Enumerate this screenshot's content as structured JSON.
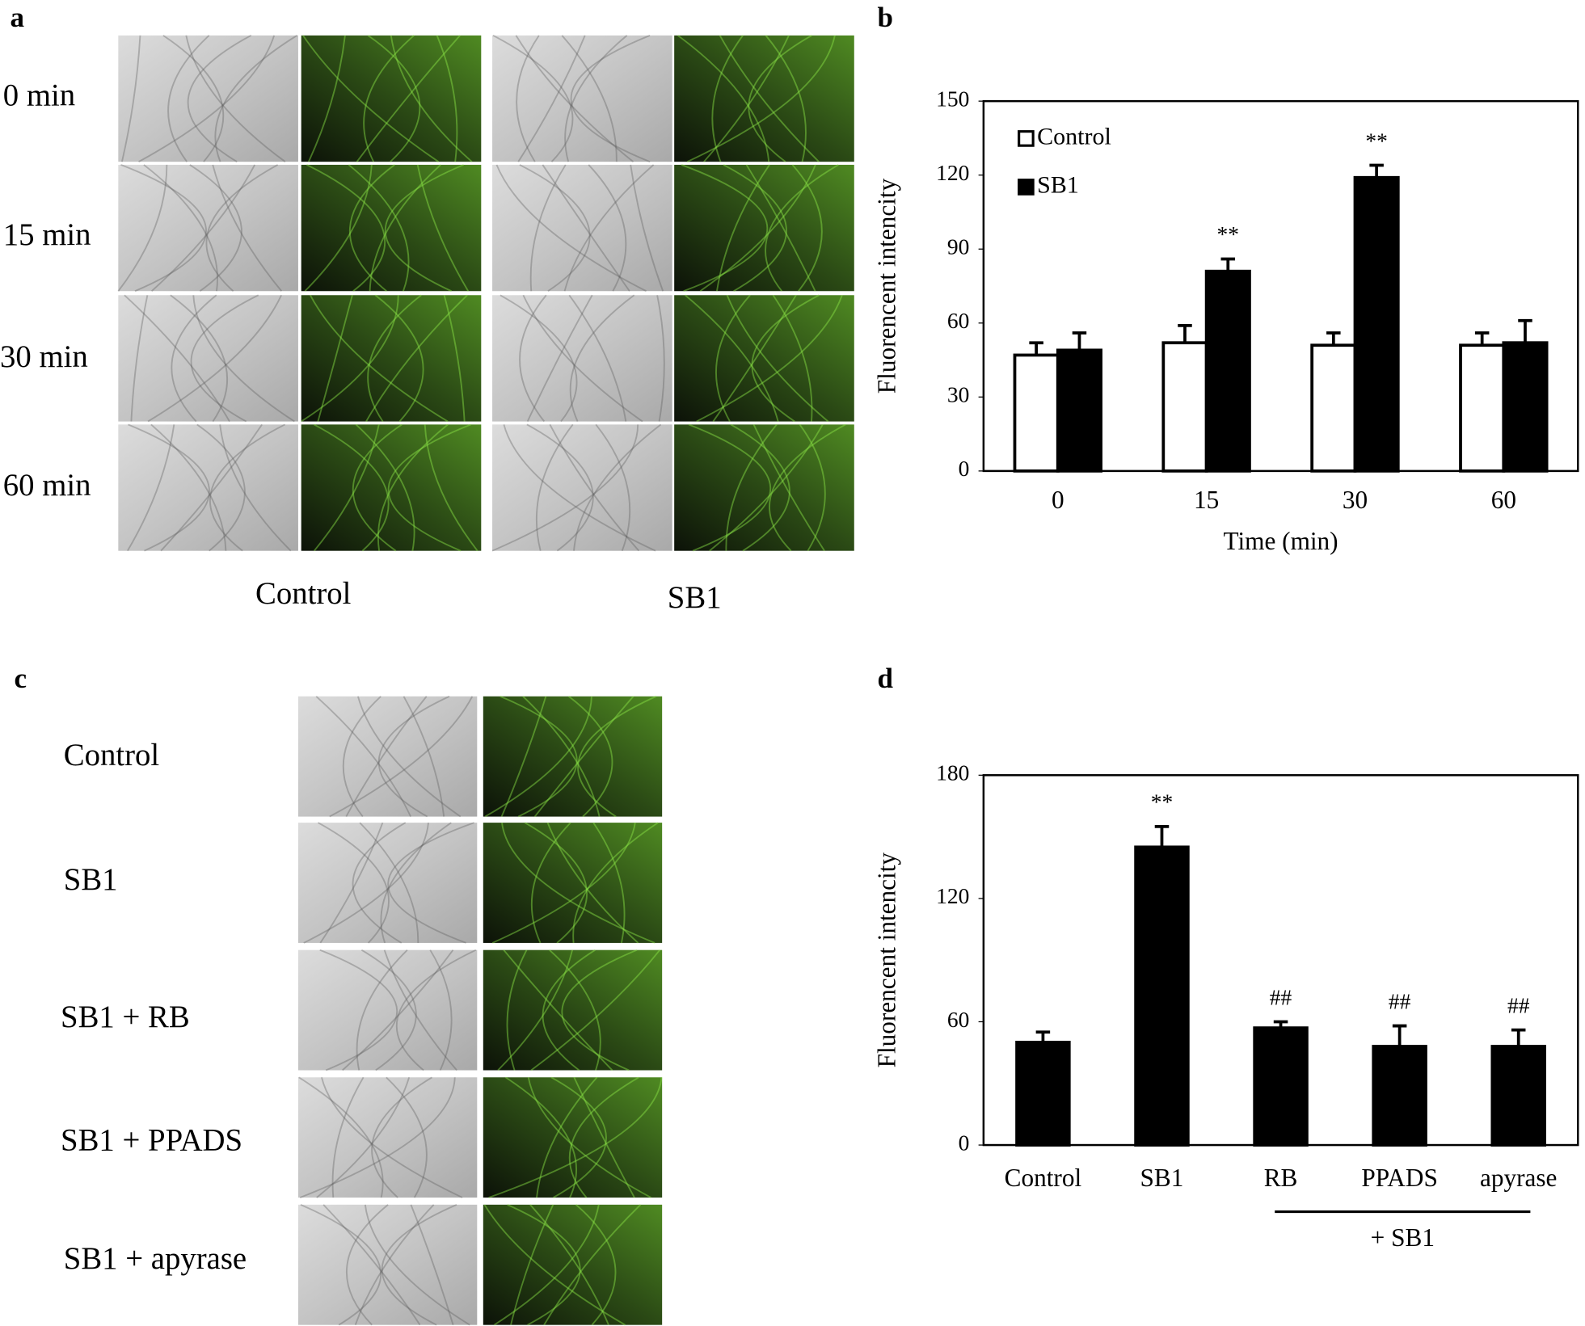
{
  "figure": {
    "panel_labels": [
      "a",
      "b",
      "c",
      "d"
    ],
    "panel_a": {
      "row_labels": [
        "0 min",
        "15 min",
        "30 min",
        "60 min"
      ],
      "column_labels": [
        "Control",
        "SB1"
      ]
    },
    "panel_c": {
      "row_labels": [
        "Control",
        "SB1",
        "SB1 + RB",
        "SB1 + PPADS",
        "SB1 + apyrase"
      ]
    }
  },
  "chart_data": [
    {
      "type": "bar",
      "y_label": "Fluorencent intencity",
      "x_label": "Time (min)",
      "categories": [
        "0",
        "15",
        "30",
        "60"
      ],
      "series": [
        {
          "name": "Control",
          "color": "#ffffff",
          "values": [
            47,
            52,
            51,
            51
          ],
          "errors": [
            5,
            7,
            5,
            5
          ]
        },
        {
          "name": "SB1",
          "color": "#000000",
          "values": [
            49,
            81,
            119,
            52
          ],
          "errors": [
            7,
            5,
            5,
            9
          ],
          "significance": [
            null,
            "**",
            "**",
            null
          ]
        }
      ],
      "ylim": [
        0,
        150
      ],
      "yticks": [
        0,
        30,
        60,
        90,
        120,
        150
      ],
      "legend": "upper left"
    },
    {
      "type": "bar",
      "y_label": "Fluorencent intencity",
      "categories": [
        "Control",
        "SB1",
        "RB",
        "PPADS",
        "apyrase"
      ],
      "color": "#000000",
      "values": [
        50,
        145,
        57,
        48,
        48
      ],
      "errors": [
        5,
        10,
        3,
        10,
        8
      ],
      "significance": [
        null,
        "**",
        "##",
        "##",
        "##"
      ],
      "group": {
        "label": "+ SB1",
        "categories": [
          "RB",
          "PPADS",
          "apyrase"
        ]
      },
      "ylim": [
        0,
        180
      ],
      "yticks": [
        0,
        60,
        120,
        180
      ]
    }
  ]
}
